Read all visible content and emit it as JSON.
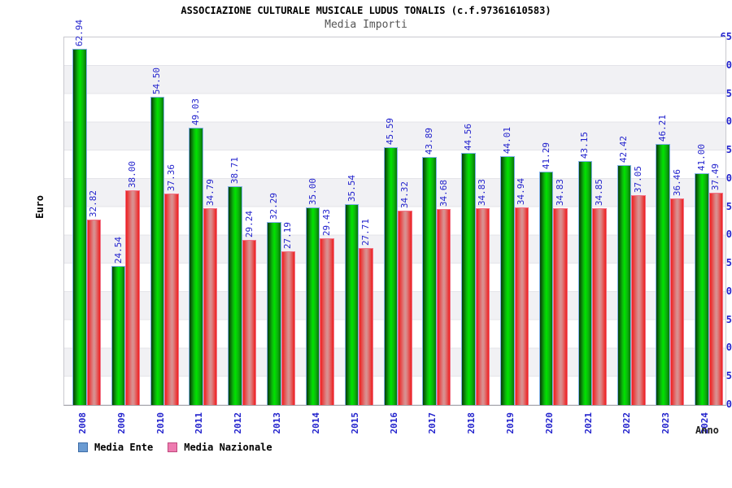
{
  "header": {
    "title": "ASSOCIAZIONE CULTURALE MUSICALE LUDUS TONALIS (c.f.97361610583)",
    "subtitle": "Media Importi"
  },
  "axes": {
    "y_label": "Euro",
    "x_label": "Anno",
    "y_ticks": [
      0,
      5,
      10,
      15,
      20,
      25,
      30,
      35,
      40,
      45,
      50,
      55,
      60,
      65
    ]
  },
  "legend": {
    "items": [
      {
        "label": "Media Ente",
        "swatch_fill": "#6b9bd2",
        "swatch_border": "#3f6ea8"
      },
      {
        "label": "Media Nazionale",
        "swatch_fill": "#ee7bb0",
        "swatch_border": "#c04a7e"
      }
    ]
  },
  "colors": {
    "label_blue": "#2323cd",
    "bar_green_main": "#00e400",
    "bar_green_border": "#7fb0e8",
    "bar_red_main": "#ee1f1f",
    "bar_red_border": "#f27286",
    "band_gray": "#f1f1f4",
    "title_black": "#000000",
    "subtitle_gray": "#555555"
  },
  "chart_data": {
    "type": "bar",
    "title": "ASSOCIAZIONE CULTURALE MUSICALE LUDUS TONALIS (c.f.97361610583)",
    "subtitle": "Media Importi",
    "xlabel": "Anno",
    "ylabel": "Euro",
    "ylim": [
      0,
      65
    ],
    "y_tick_step": 5,
    "grid": "horizontal-bands",
    "legend_position": "bottom-left",
    "categories": [
      "2008",
      "2009",
      "2010",
      "2011",
      "2012",
      "2013",
      "2014",
      "2015",
      "2016",
      "2017",
      "2018",
      "2019",
      "2020",
      "2021",
      "2022",
      "2023",
      "2024"
    ],
    "series": [
      {
        "name": "Media Ente",
        "bar_color": "green",
        "values": [
          62.94,
          24.54,
          54.5,
          49.03,
          38.71,
          32.29,
          35.0,
          35.54,
          45.59,
          43.89,
          44.56,
          44.01,
          41.29,
          43.15,
          42.42,
          46.21,
          41.0
        ]
      },
      {
        "name": "Media Nazionale",
        "bar_color": "red",
        "values": [
          32.82,
          38.0,
          37.36,
          34.79,
          29.24,
          27.19,
          29.43,
          27.71,
          34.32,
          34.68,
          34.83,
          34.94,
          34.83,
          34.85,
          37.05,
          36.46,
          37.49
        ]
      }
    ]
  }
}
